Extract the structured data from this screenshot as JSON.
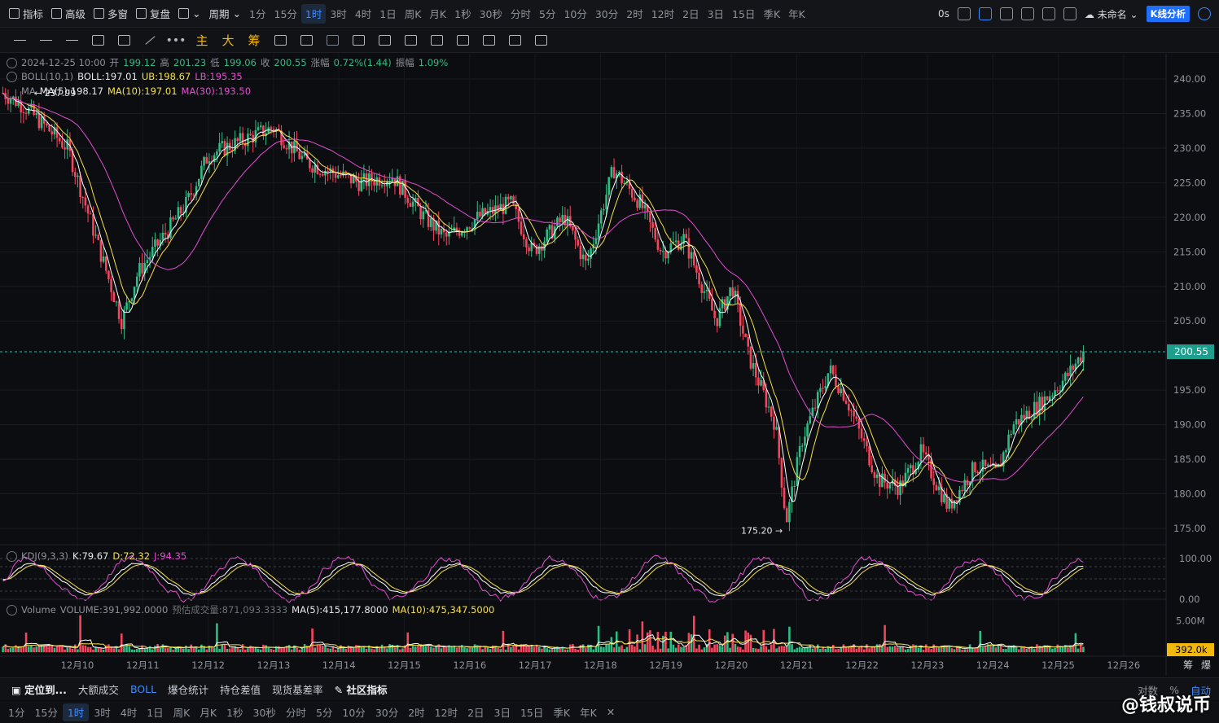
{
  "topbar": {
    "left_buttons": [
      "指标",
      "高级",
      "多窗",
      "复盘"
    ],
    "period_label": "周期",
    "timeframes": [
      "1分",
      "15分",
      "1时",
      "3时",
      "4时",
      "1日",
      "周K",
      "月K",
      "1秒",
      "30秒",
      "分时",
      "5分",
      "10分",
      "30分",
      "2时",
      "12时",
      "2日",
      "3日",
      "15日",
      "季K",
      "年K"
    ],
    "active_timeframe": "1时",
    "countdown": "0s",
    "layout_name": "未命名",
    "analysis_button": "K线分析"
  },
  "drawbar": {
    "text_tools": [
      "主",
      "大",
      "筹"
    ]
  },
  "legend": {
    "ohlc": {
      "datetime": "2024-12-25 10:00",
      "open_label": "开",
      "open": "199.12",
      "high_label": "高",
      "high": "201.23",
      "low_label": "低",
      "low": "199.06",
      "close_label": "收",
      "close": "200.55",
      "change_label": "涨幅",
      "change": "0.72%(1.44)",
      "amplitude_label": "振幅",
      "amplitude": "1.09%"
    },
    "boll": {
      "name": "BOLL(10,1)",
      "mid": "BOLL:197.01",
      "ub": "UB:198.67",
      "lb": "LB:195.35"
    },
    "ma": {
      "name": "MA",
      "ma5": "MA(5):198.17",
      "ma10": "MA(10):197.01",
      "ma30": "MA(30):193.50"
    },
    "kdj": {
      "name": "KDJ(9,3,3)",
      "k": "K:79.67",
      "d": "D:72.32",
      "j": "J:94.35"
    },
    "volume": {
      "name": "Volume",
      "vol": "VOLUME:391,992.0000",
      "est": "预估成交量:871,093.3333",
      "ma5": "MA(5):415,177.8000",
      "ma10": "MA(10):475,347.5000"
    }
  },
  "chart_data": {
    "type": "candlestick",
    "x_tick_labels": [
      "12月10",
      "12月11",
      "12月12",
      "12月13",
      "12月14",
      "12月15",
      "12月16",
      "12月17",
      "12月18",
      "12月19",
      "12月20",
      "12月21",
      "12月22",
      "12月23",
      "12月24",
      "12月25",
      "12月26"
    ],
    "price_axis": {
      "ticks": [
        "240.00",
        "235.00",
        "230.00",
        "225.00",
        "220.00",
        "215.00",
        "210.00",
        "205.00",
        "195.00",
        "190.00",
        "185.00",
        "180.00",
        "175.00"
      ],
      "range": [
        173,
        242
      ],
      "last_price": "200.55",
      "high_marker": "← 237.99",
      "low_marker": "175.20 →"
    },
    "kdj_axis": {
      "ticks": [
        "100.00",
        "0.00"
      ]
    },
    "volume_axis": {
      "ticks": [
        "5.00M"
      ],
      "last_volume": "392.0k"
    },
    "daily_closes": [
      {
        "date": "12月10",
        "close": 214
      },
      {
        "date": "12月11",
        "close": 218
      },
      {
        "date": "12月12",
        "close": 229
      },
      {
        "date": "12月13",
        "close": 227
      },
      {
        "date": "12月14",
        "close": 224
      },
      {
        "date": "12月15",
        "close": 219
      },
      {
        "date": "12月16",
        "close": 220
      },
      {
        "date": "12月17",
        "close": 214
      },
      {
        "date": "12月18",
        "close": 224
      },
      {
        "date": "12月19",
        "close": 218
      },
      {
        "date": "12月20",
        "close": 200
      },
      {
        "date": "12月21",
        "close": 190
      },
      {
        "date": "12月22",
        "close": 182
      },
      {
        "date": "12月23",
        "close": 181
      },
      {
        "date": "12月24",
        "close": 190
      },
      {
        "date": "12月25",
        "close": 200.55
      }
    ],
    "colors": {
      "up": "#2ebd85",
      "down": "#f6465d",
      "ma5": "#ffffff",
      "ma10": "#f5e04a",
      "ma30": "#e24fd0",
      "last_price_badge": "#1e9e8c",
      "volume_badge": "#f0b90b"
    }
  },
  "bottombar": {
    "items": [
      "定位到...",
      "大额成交",
      "BOLL",
      "爆仓统计",
      "持仓差值",
      "现货基差率",
      "社区指标"
    ],
    "right": [
      "对数",
      "%",
      "自动"
    ],
    "axis_right": [
      "筹",
      "爆"
    ]
  },
  "tfbar": {
    "timeframes": [
      "1分",
      "15分",
      "1时",
      "3时",
      "4时",
      "1日",
      "周K",
      "月K",
      "1秒",
      "30秒",
      "分时",
      "5分",
      "10分",
      "30分",
      "2时",
      "12时",
      "2日",
      "3日",
      "15日",
      "季K",
      "年K"
    ],
    "active": "1时"
  },
  "watermark": "@钱叔说币"
}
